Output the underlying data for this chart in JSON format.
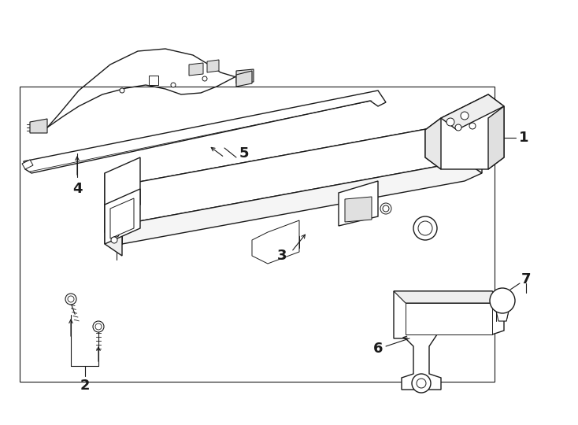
{
  "bg_color": "#ffffff",
  "line_color": "#1a1a1a",
  "lw": 1.0,
  "fig_width": 7.34,
  "fig_height": 5.4,
  "dpi": 100
}
